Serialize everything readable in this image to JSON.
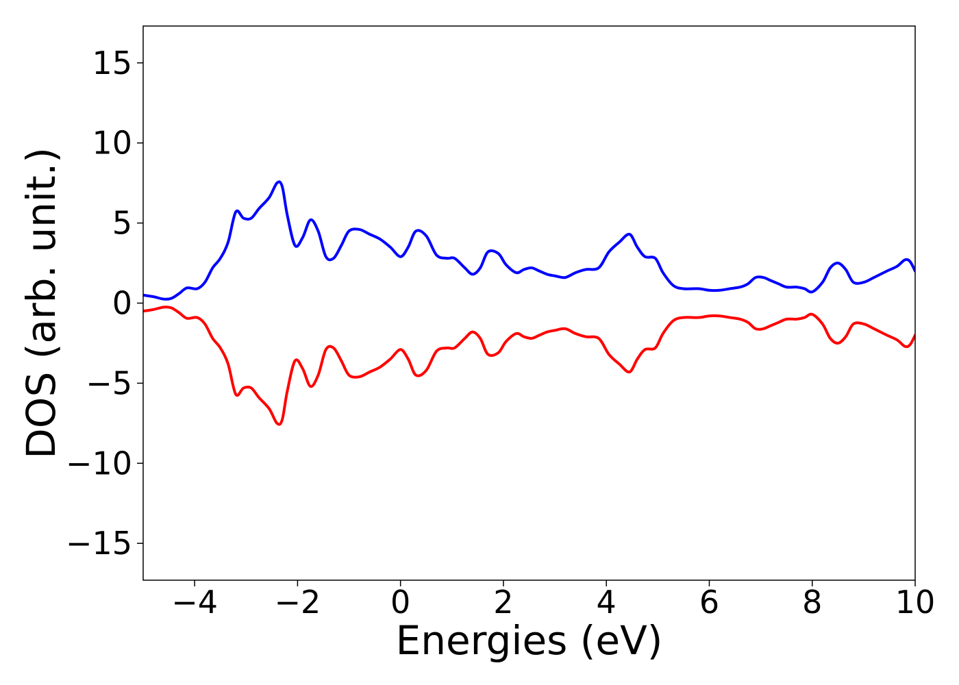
{
  "chart_data": {
    "type": "line",
    "title": "",
    "xlabel": "Energies (eV)",
    "ylabel": "DOS (arb. unit.)",
    "xlim": [
      -5,
      10
    ],
    "ylim": [
      -17.3,
      17.3
    ],
    "xticks": [
      -4,
      -2,
      0,
      2,
      4,
      6,
      8,
      10
    ],
    "xtick_labels": [
      "−4",
      "−2",
      "0",
      "2",
      "4",
      "6",
      "8",
      "10"
    ],
    "yticks": [
      15,
      10,
      5,
      0,
      -5,
      -10,
      -15
    ],
    "ytick_labels": [
      "15",
      "10",
      "5",
      "0",
      "−5",
      "−10",
      "−15"
    ],
    "grid": false,
    "legend": "none",
    "series": [
      {
        "color": "#0000ff",
        "x": [
          -5,
          -4.8,
          -4.6,
          -4.45,
          -4.3,
          -4.15,
          -3.95,
          -3.8,
          -3.65,
          -3.5,
          -3.35,
          -3.2,
          -3.05,
          -2.9,
          -2.75,
          -2.55,
          -2.4,
          -2.3,
          -2.2,
          -2.05,
          -1.9,
          -1.75,
          -1.6,
          -1.45,
          -1.3,
          -1.15,
          -1.0,
          -0.8,
          -0.6,
          -0.4,
          -0.2,
          0.0,
          0.15,
          0.3,
          0.5,
          0.7,
          0.9,
          1.05,
          1.25,
          1.4,
          1.55,
          1.7,
          1.9,
          2.05,
          2.25,
          2.4,
          2.55,
          2.7,
          2.85,
          3.0,
          3.2,
          3.4,
          3.6,
          3.85,
          4.05,
          4.25,
          4.45,
          4.6,
          4.75,
          4.95,
          5.1,
          5.3,
          5.5,
          5.8,
          6.0,
          6.2,
          6.4,
          6.6,
          6.75,
          6.9,
          7.05,
          7.2,
          7.35,
          7.5,
          7.7,
          7.85,
          8.0,
          8.2,
          8.35,
          8.5,
          8.65,
          8.8,
          9.0,
          9.2,
          9.45,
          9.65,
          9.8,
          9.9,
          10.0
        ],
        "values": [
          0.5,
          0.4,
          0.25,
          0.3,
          0.6,
          0.95,
          0.9,
          1.3,
          2.2,
          2.8,
          3.8,
          5.7,
          5.3,
          5.3,
          5.9,
          6.6,
          7.5,
          7.3,
          5.5,
          3.6,
          4.1,
          5.2,
          4.5,
          2.9,
          2.8,
          3.6,
          4.5,
          4.6,
          4.3,
          4.0,
          3.5,
          2.9,
          3.5,
          4.5,
          4.2,
          3.0,
          2.8,
          2.8,
          2.2,
          1.8,
          2.2,
          3.2,
          3.1,
          2.4,
          1.9,
          2.1,
          2.2,
          2.0,
          1.8,
          1.7,
          1.6,
          1.9,
          2.1,
          2.2,
          3.2,
          3.8,
          4.3,
          3.5,
          2.9,
          2.8,
          1.9,
          1.1,
          0.9,
          0.9,
          0.8,
          0.8,
          0.9,
          1.0,
          1.2,
          1.6,
          1.6,
          1.4,
          1.2,
          1.0,
          1.0,
          0.9,
          0.7,
          1.3,
          2.2,
          2.5,
          2.1,
          1.3,
          1.3,
          1.6,
          2.0,
          2.3,
          2.7,
          2.6,
          2.0
        ]
      },
      {
        "color": "#ff0000",
        "x": [
          -5,
          -4.8,
          -4.6,
          -4.45,
          -4.3,
          -4.15,
          -3.95,
          -3.8,
          -3.65,
          -3.5,
          -3.35,
          -3.2,
          -3.05,
          -2.9,
          -2.75,
          -2.55,
          -2.4,
          -2.3,
          -2.2,
          -2.05,
          -1.9,
          -1.75,
          -1.6,
          -1.45,
          -1.3,
          -1.15,
          -1.0,
          -0.8,
          -0.6,
          -0.4,
          -0.2,
          0.0,
          0.15,
          0.3,
          0.5,
          0.7,
          0.9,
          1.05,
          1.25,
          1.4,
          1.55,
          1.7,
          1.9,
          2.05,
          2.25,
          2.4,
          2.55,
          2.7,
          2.85,
          3.0,
          3.2,
          3.4,
          3.6,
          3.85,
          4.05,
          4.25,
          4.45,
          4.6,
          4.75,
          4.95,
          5.1,
          5.3,
          5.5,
          5.8,
          6.0,
          6.2,
          6.4,
          6.6,
          6.75,
          6.9,
          7.05,
          7.2,
          7.35,
          7.5,
          7.7,
          7.85,
          8.0,
          8.2,
          8.35,
          8.5,
          8.65,
          8.8,
          9.0,
          9.2,
          9.45,
          9.65,
          9.8,
          9.9,
          10.0
        ],
        "values": [
          -0.5,
          -0.4,
          -0.25,
          -0.3,
          -0.6,
          -0.95,
          -0.9,
          -1.3,
          -2.2,
          -2.8,
          -3.8,
          -5.7,
          -5.3,
          -5.3,
          -5.9,
          -6.6,
          -7.5,
          -7.3,
          -5.5,
          -3.6,
          -4.1,
          -5.2,
          -4.5,
          -2.9,
          -2.8,
          -3.6,
          -4.5,
          -4.6,
          -4.3,
          -4.0,
          -3.5,
          -2.9,
          -3.5,
          -4.5,
          -4.2,
          -3.0,
          -2.8,
          -2.8,
          -2.2,
          -1.8,
          -2.2,
          -3.2,
          -3.1,
          -2.4,
          -1.9,
          -2.1,
          -2.2,
          -2.0,
          -1.8,
          -1.7,
          -1.6,
          -1.9,
          -2.1,
          -2.2,
          -3.2,
          -3.8,
          -4.3,
          -3.5,
          -2.9,
          -2.8,
          -1.9,
          -1.1,
          -0.9,
          -0.9,
          -0.8,
          -0.8,
          -0.9,
          -1.0,
          -1.2,
          -1.6,
          -1.6,
          -1.4,
          -1.2,
          -1.0,
          -1.0,
          -0.9,
          -0.7,
          -1.3,
          -2.2,
          -2.5,
          -2.1,
          -1.3,
          -1.3,
          -1.6,
          -2.0,
          -2.3,
          -2.7,
          -2.6,
          -2.0
        ]
      }
    ]
  }
}
